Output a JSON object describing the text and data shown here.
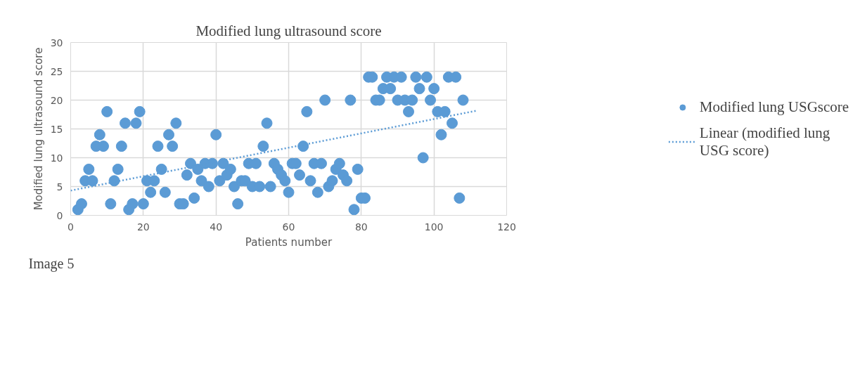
{
  "chart_data": {
    "type": "scatter",
    "title": "Modified lung ultrasound score",
    "xlabel": "Patients number",
    "ylabel": "Modified lung ultrasound score",
    "xlim": [
      0,
      120
    ],
    "xticks": [
      0,
      20,
      40,
      60,
      80,
      100,
      120
    ],
    "ylim": [
      0,
      30
    ],
    "yticks": [
      0,
      5,
      10,
      15,
      20,
      25,
      30
    ],
    "grid": true,
    "legend": "right",
    "annotations": [
      "Image 5"
    ],
    "series": [
      {
        "name": "Modified lung USGscore",
        "marker": "circle",
        "color": "#5b9bd5",
        "x": [
          2,
          3,
          4,
          5,
          6,
          7,
          8,
          9,
          10,
          11,
          12,
          13,
          14,
          15,
          16,
          17,
          18,
          19,
          20,
          21,
          22,
          23,
          24,
          25,
          26,
          27,
          28,
          29,
          30,
          31,
          32,
          33,
          34,
          35,
          36,
          37,
          38,
          39,
          40,
          41,
          42,
          43,
          44,
          45,
          46,
          47,
          48,
          49,
          50,
          51,
          52,
          53,
          54,
          55,
          56,
          57,
          58,
          59,
          60,
          61,
          62,
          63,
          64,
          65,
          66,
          67,
          68,
          69,
          70,
          71,
          72,
          73,
          74,
          75,
          76,
          77,
          78,
          79,
          80,
          81,
          82,
          83,
          84,
          85,
          86,
          87,
          88,
          89,
          90,
          91,
          92,
          93,
          94,
          95,
          96,
          97,
          98,
          99,
          100,
          101,
          102,
          103,
          104,
          105,
          106,
          107,
          108
        ],
        "values": [
          1,
          2,
          6,
          8,
          6,
          12,
          14,
          12,
          18,
          2,
          6,
          8,
          12,
          16,
          1,
          2,
          16,
          18,
          2,
          6,
          4,
          6,
          12,
          8,
          4,
          14,
          12,
          16,
          2,
          2,
          7,
          9,
          3,
          8,
          6,
          9,
          5,
          9,
          14,
          6,
          9,
          7,
          8,
          5,
          2,
          6,
          6,
          9,
          5,
          9,
          5,
          12,
          16,
          5,
          9,
          8,
          7,
          6,
          4,
          9,
          9,
          7,
          12,
          18,
          6,
          9,
          4,
          9,
          20,
          5,
          6,
          8,
          9,
          7,
          6,
          20,
          1,
          8,
          3,
          3,
          24,
          24,
          20,
          20,
          22,
          24,
          22,
          24,
          20,
          24,
          20,
          18,
          20,
          24,
          22,
          10,
          24,
          20,
          22,
          18,
          14,
          18,
          24,
          16,
          24,
          3,
          20
        ]
      },
      {
        "name": "Linear (modified lung USG score)",
        "type": "line",
        "line_style": "dotted",
        "marker": "none",
        "color": "#5b9bd5",
        "x": [
          0,
          112
        ],
        "values": [
          4.3,
          18.2
        ]
      }
    ]
  }
}
